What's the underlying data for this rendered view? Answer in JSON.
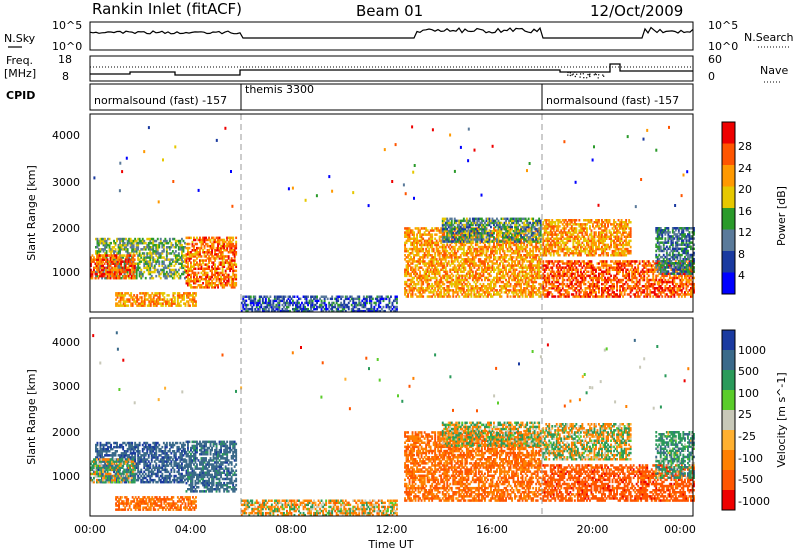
{
  "header": {
    "station": "Rankin Inlet (fitACF)",
    "beam": "Beam 01",
    "date": "12/Oct/2009"
  },
  "strip": {
    "nsky_label": "N.Sky",
    "nsky_ticks": [
      "10^5",
      "10^0"
    ],
    "nsearch_label": "N.Search",
    "nsearch_ticks": [
      "10^5",
      "10^0"
    ],
    "freq_label": "Freq.",
    "freq_unit": "[MHz]",
    "freq_ticks": [
      "18",
      "8"
    ],
    "nave_label": "Nave",
    "nave_ticks": [
      "60",
      "0"
    ],
    "cpid_label": "CPID",
    "cpid_segments": [
      {
        "label": "normalsound (fast) -157",
        "start_h": 0,
        "end_h": 6
      },
      {
        "label": "themis 3300",
        "start_h": 6,
        "end_h": 18
      },
      {
        "label": "normalsound (fast) -157",
        "start_h": 18,
        "end_h": 24
      }
    ]
  },
  "xaxis": {
    "title": "Time UT",
    "ticks": [
      "00:00",
      "04:00",
      "08:00",
      "12:00",
      "16:00",
      "20:00",
      "00:00"
    ]
  },
  "power_panel": {
    "ylabel": "Slant Range [km]",
    "yticks": [
      "4000",
      "3000",
      "2000",
      "1000"
    ],
    "colorbar_label": "Power [dB]",
    "colorbar_ticks": [
      "28",
      "24",
      "20",
      "16",
      "12",
      "8",
      "4"
    ],
    "colorbar_colors": [
      "#ee0000",
      "#ff5500",
      "#ff9900",
      "#e6c800",
      "#2a9a2a",
      "#5a7a9a",
      "#1a3aa0",
      "#0000ff"
    ]
  },
  "velocity_panel": {
    "ylabel": "Slant Range [km]",
    "yticks": [
      "4000",
      "3000",
      "2000",
      "1000"
    ],
    "colorbar_label": "Velocity [m s^-1]",
    "colorbar_ticks": [
      "1000",
      "500",
      "100",
      "25",
      "-25",
      "-100",
      "-500",
      "-1000"
    ],
    "colorbar_colors": [
      "#1a3aa0",
      "#3a6a8a",
      "#2a9a5a",
      "#5acc2a",
      "#c8c8b8",
      "#ffb030",
      "#ff8000",
      "#ff5500",
      "#ee0000"
    ]
  },
  "chart_data": {
    "type": "heatmap",
    "x_range_hours": [
      0,
      24
    ],
    "y_range_km": [
      180,
      4500
    ],
    "dashed_time_markers_hours": [
      6,
      18
    ],
    "echo_regions": [
      {
        "t": [
          0.2,
          3.8
        ],
        "r": [
          900,
          1800
        ],
        "power": 14,
        "velocity": 600
      },
      {
        "t": [
          0.0,
          1.8
        ],
        "r": [
          900,
          1400
        ],
        "power": 26,
        "velocity": 100
      },
      {
        "t": [
          1.0,
          4.2
        ],
        "r": [
          300,
          600
        ],
        "power": 22,
        "velocity": -300
      },
      {
        "t": [
          3.8,
          5.8
        ],
        "r": [
          700,
          1800
        ],
        "power": 24,
        "velocity": 500
      },
      {
        "t": [
          6.0,
          12.2
        ],
        "r": [
          180,
          500
        ],
        "power": 8,
        "velocity": -80
      },
      {
        "t": [
          12.5,
          17.9
        ],
        "r": [
          500,
          2000
        ],
        "power": 22,
        "velocity": -300
      },
      {
        "t": [
          14.0,
          17.9
        ],
        "r": [
          1700,
          2200
        ],
        "power": 12,
        "velocity": 0
      },
      {
        "t": [
          18.0,
          21.5
        ],
        "r": [
          1400,
          2200
        ],
        "power": 22,
        "velocity": 0
      },
      {
        "t": [
          18.0,
          24.0
        ],
        "r": [
          500,
          1300
        ],
        "power": 26,
        "velocity": -500
      },
      {
        "t": [
          22.5,
          24.0
        ],
        "r": [
          1000,
          2000
        ],
        "power": 10,
        "velocity": 200
      }
    ]
  }
}
